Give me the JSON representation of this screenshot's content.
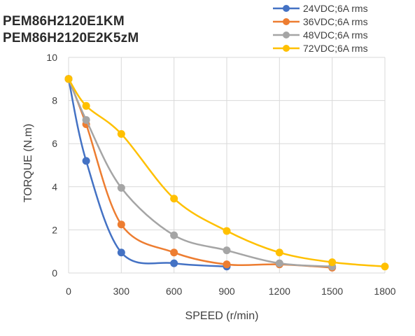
{
  "header": {
    "model_line_1": "PEM86H2120E1KM",
    "model_line_2": "PEM86H2120E2K5zM"
  },
  "chart_data": {
    "type": "line",
    "xlabel": "SPEED (r/min)",
    "ylabel": "TORQUE (N.m)",
    "xlim": [
      0,
      1800
    ],
    "ylim": [
      0,
      10
    ],
    "xticks": [
      0,
      300,
      600,
      900,
      1200,
      1500,
      1800
    ],
    "yticks": [
      0,
      2,
      4,
      6,
      8,
      10
    ],
    "grid": true,
    "legend_position": "top-right",
    "series": [
      {
        "name": "24VDC;6A rms",
        "color": "#4472C4",
        "x": [
          0,
          100,
          300,
          600,
          900
        ],
        "y": [
          9.0,
          5.2,
          0.95,
          0.45,
          0.3
        ]
      },
      {
        "name": "36VDC;6A rms",
        "color": "#ED7D31",
        "x": [
          0,
          100,
          300,
          600,
          900,
          1200,
          1500
        ],
        "y": [
          9.0,
          6.9,
          2.25,
          0.95,
          0.4,
          0.4,
          0.25
        ]
      },
      {
        "name": "48VDC;6A rms",
        "color": "#A5A5A5",
        "x": [
          0,
          100,
          300,
          600,
          900,
          1200,
          1500
        ],
        "y": [
          9.0,
          7.1,
          3.95,
          1.75,
          1.05,
          0.45,
          0.3
        ]
      },
      {
        "name": "72VDC;6A rms",
        "color": "#FFC000",
        "x": [
          0,
          100,
          300,
          600,
          900,
          1200,
          1500,
          1800
        ],
        "y": [
          9.0,
          7.75,
          6.45,
          3.45,
          1.95,
          0.95,
          0.5,
          0.3
        ]
      }
    ]
  }
}
